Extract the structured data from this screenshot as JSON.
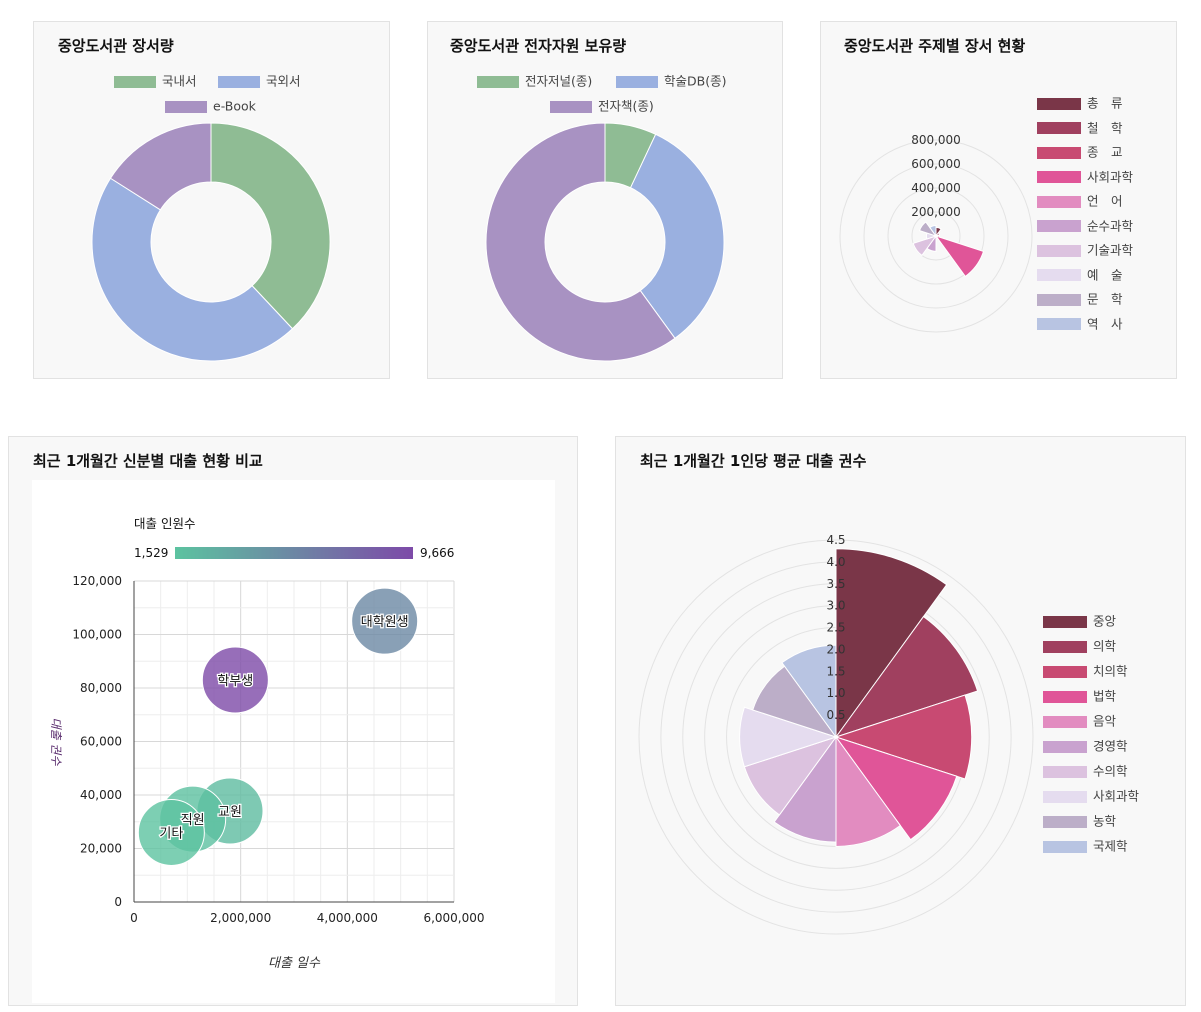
{
  "colors": {
    "green": "#8fbc94",
    "blue": "#9ab0e0",
    "purple": "#a892c2"
  },
  "holdings": {
    "title": "중앙도서관 장서량",
    "chart_data": {
      "type": "pie",
      "title": "중앙도서관 장서량",
      "categories": [
        "국내서",
        "국외서",
        "e-Book"
      ],
      "values": [
        38,
        46,
        16
      ],
      "colors": [
        "#8fbc94",
        "#9ab0e0",
        "#a892c2"
      ]
    }
  },
  "eresources": {
    "title": "중앙도서관 전자자원 보유량",
    "chart_data": {
      "type": "pie",
      "title": "중앙도서관 전자자원 보유량",
      "categories": [
        "전자저널(종)",
        "학술DB(종)",
        "전자책(종)"
      ],
      "values": [
        7,
        33,
        60
      ],
      "colors": [
        "#8fbc94",
        "#9ab0e0",
        "#a892c2"
      ]
    }
  },
  "subjects": {
    "title": "중앙도서관 주제별 장서 현황",
    "chart_data": {
      "type": "polar-area",
      "title": "중앙도서관 주제별 장서 현황",
      "categories": [
        "총　류",
        "철　학",
        "종　교",
        "사회과학",
        "언　어",
        "순수과학",
        "기술과학",
        "예　술",
        "문　학",
        "역　사"
      ],
      "values": [
        90000,
        40000,
        35000,
        520000,
        30000,
        160000,
        250000,
        100000,
        180000,
        110000
      ],
      "colors": [
        "#7a3648",
        "#a0405f",
        "#c84a72",
        "#e05598",
        "#e28cc0",
        "#c9a2cf",
        "#dcc2df",
        "#e5dcef",
        "#bcaec8",
        "#b8c4e2"
      ],
      "rticks": [
        "200,000",
        "400,000",
        "600,000",
        "800,000"
      ],
      "rmax": 1000000
    }
  },
  "bubble": {
    "title": "최근 1개월간 신분별 대출 현황 비교",
    "chart_data": {
      "type": "scatter",
      "title": "최근 1개월간 신분별 대출 현황 비교",
      "xlabel": "대출 일수",
      "ylabel": "대출 권수",
      "xlim": [
        0,
        6000000
      ],
      "ylim": [
        0,
        120000
      ],
      "xticks": [
        "0",
        "2,000,000",
        "4,000,000",
        "6,000,000"
      ],
      "yticks": [
        "0",
        "20,000",
        "40,000",
        "60,000",
        "80,000",
        "100,000",
        "120,000"
      ],
      "colorbar": {
        "title": "대출 인원수",
        "min": "1,529",
        "max": "9,666"
      },
      "points": [
        {
          "label": "대학원생",
          "x": 4700000,
          "y": 105000,
          "size": 5500
        },
        {
          "label": "학부생",
          "x": 1900000,
          "y": 83000,
          "size": 9666
        },
        {
          "label": "교원",
          "x": 1800000,
          "y": 34000,
          "size": 2000
        },
        {
          "label": "직원",
          "x": 1100000,
          "y": 31000,
          "size": 1700
        },
        {
          "label": "기타",
          "x": 700000,
          "y": 26000,
          "size": 1529
        }
      ]
    }
  },
  "average": {
    "title": "최근 1개월간 1인당 평균 대출 권수",
    "chart_data": {
      "type": "polar-area",
      "title": "최근 1개월간 1인당 평균 대출 권수",
      "categories": [
        "중앙",
        "의학",
        "치의학",
        "법학",
        "음악",
        "경영학",
        "수의학",
        "사회과학",
        "농학",
        "국제학"
      ],
      "values": [
        4.3,
        3.4,
        3.1,
        2.9,
        2.5,
        2.4,
        2.2,
        2.2,
        2.0,
        2.1
      ],
      "colors": [
        "#7a3648",
        "#a0405f",
        "#c84a72",
        "#e05598",
        "#e28cc0",
        "#c9a2cf",
        "#dcc2df",
        "#e5dcef",
        "#bcaec8",
        "#b8c4e2"
      ],
      "rticks": [
        "0.5",
        "1.0",
        "1.5",
        "2.0",
        "2.5",
        "3.0",
        "3.5",
        "4.0",
        "4.5"
      ],
      "rmax": 4.5
    }
  }
}
